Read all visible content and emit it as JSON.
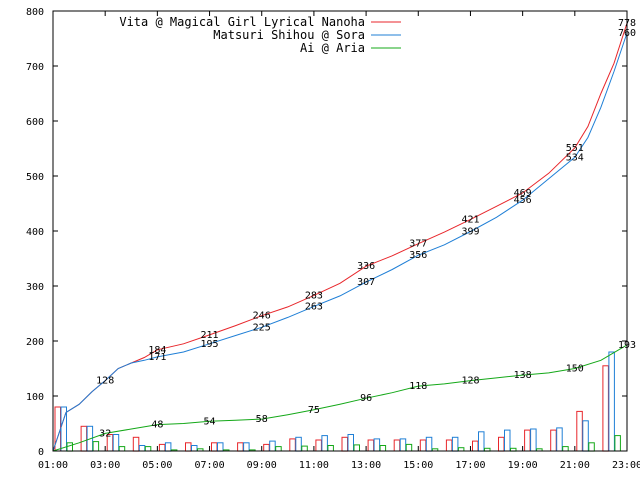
{
  "chart_data": {
    "type": "line",
    "title": "",
    "xlabel": "",
    "ylabel": "",
    "ylim": [
      0,
      800
    ],
    "yticks": [
      0,
      100,
      200,
      300,
      400,
      500,
      600,
      700,
      800
    ],
    "xlim": [
      "01:00",
      "23:00"
    ],
    "xticks": [
      "01:00",
      "03:00",
      "05:00",
      "07:00",
      "09:00",
      "11:00",
      "13:00",
      "15:00",
      "17:00",
      "19:00",
      "21:00",
      "23:00"
    ],
    "grid": false,
    "legend_position": "top-right",
    "series": [
      {
        "name": "Vita @ Magical Girl Lyrical Nanoha",
        "color": "#e8262b",
        "cumulative": [
          {
            "x": "01:00",
            "y": 0
          },
          {
            "x": "01:30",
            "y": 70
          },
          {
            "x": "02:00",
            "y": 85
          },
          {
            "x": "02:30",
            "y": 108
          },
          {
            "x": "03:00",
            "y": 128
          },
          {
            "x": "03:30",
            "y": 150
          },
          {
            "x": "04:00",
            "y": 160
          },
          {
            "x": "04:30",
            "y": 170
          },
          {
            "x": "05:00",
            "y": 184
          },
          {
            "x": "06:00",
            "y": 195
          },
          {
            "x": "07:00",
            "y": 211
          },
          {
            "x": "08:00",
            "y": 228
          },
          {
            "x": "09:00",
            "y": 246
          },
          {
            "x": "10:00",
            "y": 262
          },
          {
            "x": "11:00",
            "y": 283
          },
          {
            "x": "12:00",
            "y": 305
          },
          {
            "x": "13:00",
            "y": 336
          },
          {
            "x": "14:00",
            "y": 355
          },
          {
            "x": "15:00",
            "y": 377
          },
          {
            "x": "16:00",
            "y": 398
          },
          {
            "x": "17:00",
            "y": 421
          },
          {
            "x": "18:00",
            "y": 445
          },
          {
            "x": "19:00",
            "y": 469
          },
          {
            "x": "20:00",
            "y": 505
          },
          {
            "x": "21:00",
            "y": 551
          },
          {
            "x": "21:30",
            "y": 590
          },
          {
            "x": "22:00",
            "y": 650
          },
          {
            "x": "22:30",
            "y": 705
          },
          {
            "x": "23:00",
            "y": 778
          }
        ],
        "labels": [
          {
            "x": "03:00",
            "y": 128,
            "text": "128"
          },
          {
            "x": "05:00",
            "y": 184,
            "text": "184"
          },
          {
            "x": "07:00",
            "y": 211,
            "text": "211"
          },
          {
            "x": "09:00",
            "y": 246,
            "text": "246"
          },
          {
            "x": "11:00",
            "y": 283,
            "text": "283"
          },
          {
            "x": "13:00",
            "y": 336,
            "text": "336"
          },
          {
            "x": "15:00",
            "y": 377,
            "text": "377"
          },
          {
            "x": "17:00",
            "y": 421,
            "text": "421"
          },
          {
            "x": "19:00",
            "y": 469,
            "text": "469"
          },
          {
            "x": "21:00",
            "y": 551,
            "text": "551"
          },
          {
            "x": "23:00",
            "y": 778,
            "text": "778"
          }
        ],
        "hourly": [
          80,
          45,
          30,
          25,
          12,
          15,
          15,
          15,
          12,
          22,
          20,
          25,
          20,
          20,
          20,
          20,
          18,
          25,
          38,
          38,
          72,
          155
        ]
      },
      {
        "name": "Matsuri Shihou @ Sora",
        "color": "#1f7fd6",
        "cumulative": [
          {
            "x": "01:00",
            "y": 0
          },
          {
            "x": "01:30",
            "y": 70
          },
          {
            "x": "02:00",
            "y": 85
          },
          {
            "x": "02:30",
            "y": 108
          },
          {
            "x": "03:00",
            "y": 128
          },
          {
            "x": "03:30",
            "y": 150
          },
          {
            "x": "04:00",
            "y": 160
          },
          {
            "x": "04:30",
            "y": 165
          },
          {
            "x": "05:00",
            "y": 171
          },
          {
            "x": "06:00",
            "y": 180
          },
          {
            "x": "07:00",
            "y": 195
          },
          {
            "x": "08:00",
            "y": 210
          },
          {
            "x": "09:00",
            "y": 225
          },
          {
            "x": "10:00",
            "y": 243
          },
          {
            "x": "11:00",
            "y": 263
          },
          {
            "x": "12:00",
            "y": 282
          },
          {
            "x": "13:00",
            "y": 307
          },
          {
            "x": "14:00",
            "y": 330
          },
          {
            "x": "15:00",
            "y": 356
          },
          {
            "x": "16:00",
            "y": 375
          },
          {
            "x": "17:00",
            "y": 399
          },
          {
            "x": "18:00",
            "y": 425
          },
          {
            "x": "19:00",
            "y": 456
          },
          {
            "x": "20:00",
            "y": 495
          },
          {
            "x": "21:00",
            "y": 534
          },
          {
            "x": "21:30",
            "y": 570
          },
          {
            "x": "22:00",
            "y": 625
          },
          {
            "x": "22:30",
            "y": 690
          },
          {
            "x": "23:00",
            "y": 760
          }
        ],
        "labels": [
          {
            "x": "05:00",
            "y": 171,
            "text": "171"
          },
          {
            "x": "07:00",
            "y": 195,
            "text": "195"
          },
          {
            "x": "09:00",
            "y": 225,
            "text": "225"
          },
          {
            "x": "11:00",
            "y": 263,
            "text": "263"
          },
          {
            "x": "13:00",
            "y": 307,
            "text": "307"
          },
          {
            "x": "15:00",
            "y": 356,
            "text": "356"
          },
          {
            "x": "17:00",
            "y": 399,
            "text": "399"
          },
          {
            "x": "19:00",
            "y": 456,
            "text": "456"
          },
          {
            "x": "21:00",
            "y": 534,
            "text": "534"
          },
          {
            "x": "23:00",
            "y": 760,
            "text": "760"
          }
        ],
        "hourly": [
          80,
          45,
          30,
          10,
          15,
          10,
          15,
          15,
          18,
          25,
          28,
          30,
          22,
          22,
          25,
          25,
          35,
          38,
          40,
          42,
          55,
          180
        ]
      },
      {
        "name": "Ai @ Aria",
        "color": "#14a818",
        "cumulative": [
          {
            "x": "01:00",
            "y": 0
          },
          {
            "x": "02:00",
            "y": 15
          },
          {
            "x": "03:00",
            "y": 32
          },
          {
            "x": "04:00",
            "y": 40
          },
          {
            "x": "05:00",
            "y": 48
          },
          {
            "x": "06:00",
            "y": 50
          },
          {
            "x": "07:00",
            "y": 54
          },
          {
            "x": "08:00",
            "y": 56
          },
          {
            "x": "09:00",
            "y": 58
          },
          {
            "x": "10:00",
            "y": 66
          },
          {
            "x": "11:00",
            "y": 75
          },
          {
            "x": "12:00",
            "y": 85
          },
          {
            "x": "13:00",
            "y": 96
          },
          {
            "x": "14:00",
            "y": 106
          },
          {
            "x": "15:00",
            "y": 118
          },
          {
            "x": "16:00",
            "y": 122
          },
          {
            "x": "17:00",
            "y": 128
          },
          {
            "x": "18:00",
            "y": 133
          },
          {
            "x": "19:00",
            "y": 138
          },
          {
            "x": "20:00",
            "y": 142
          },
          {
            "x": "21:00",
            "y": 150
          },
          {
            "x": "22:00",
            "y": 165
          },
          {
            "x": "23:00",
            "y": 193
          }
        ],
        "labels": [
          {
            "x": "03:00",
            "y": 32,
            "text": "32"
          },
          {
            "x": "05:00",
            "y": 48,
            "text": "48"
          },
          {
            "x": "07:00",
            "y": 54,
            "text": "54"
          },
          {
            "x": "09:00",
            "y": 58,
            "text": "58"
          },
          {
            "x": "11:00",
            "y": 75,
            "text": "75"
          },
          {
            "x": "13:00",
            "y": 96,
            "text": "96"
          },
          {
            "x": "15:00",
            "y": 118,
            "text": "118"
          },
          {
            "x": "17:00",
            "y": 128,
            "text": "128"
          },
          {
            "x": "19:00",
            "y": 138,
            "text": "138"
          },
          {
            "x": "21:00",
            "y": 150,
            "text": "150"
          },
          {
            "x": "23:00",
            "y": 193,
            "text": "193"
          }
        ],
        "hourly": [
          15,
          17,
          8,
          8,
          2,
          4,
          2,
          2,
          8,
          9,
          10,
          11,
          10,
          12,
          4,
          6,
          5,
          5,
          4,
          8,
          15,
          28
        ]
      }
    ]
  }
}
